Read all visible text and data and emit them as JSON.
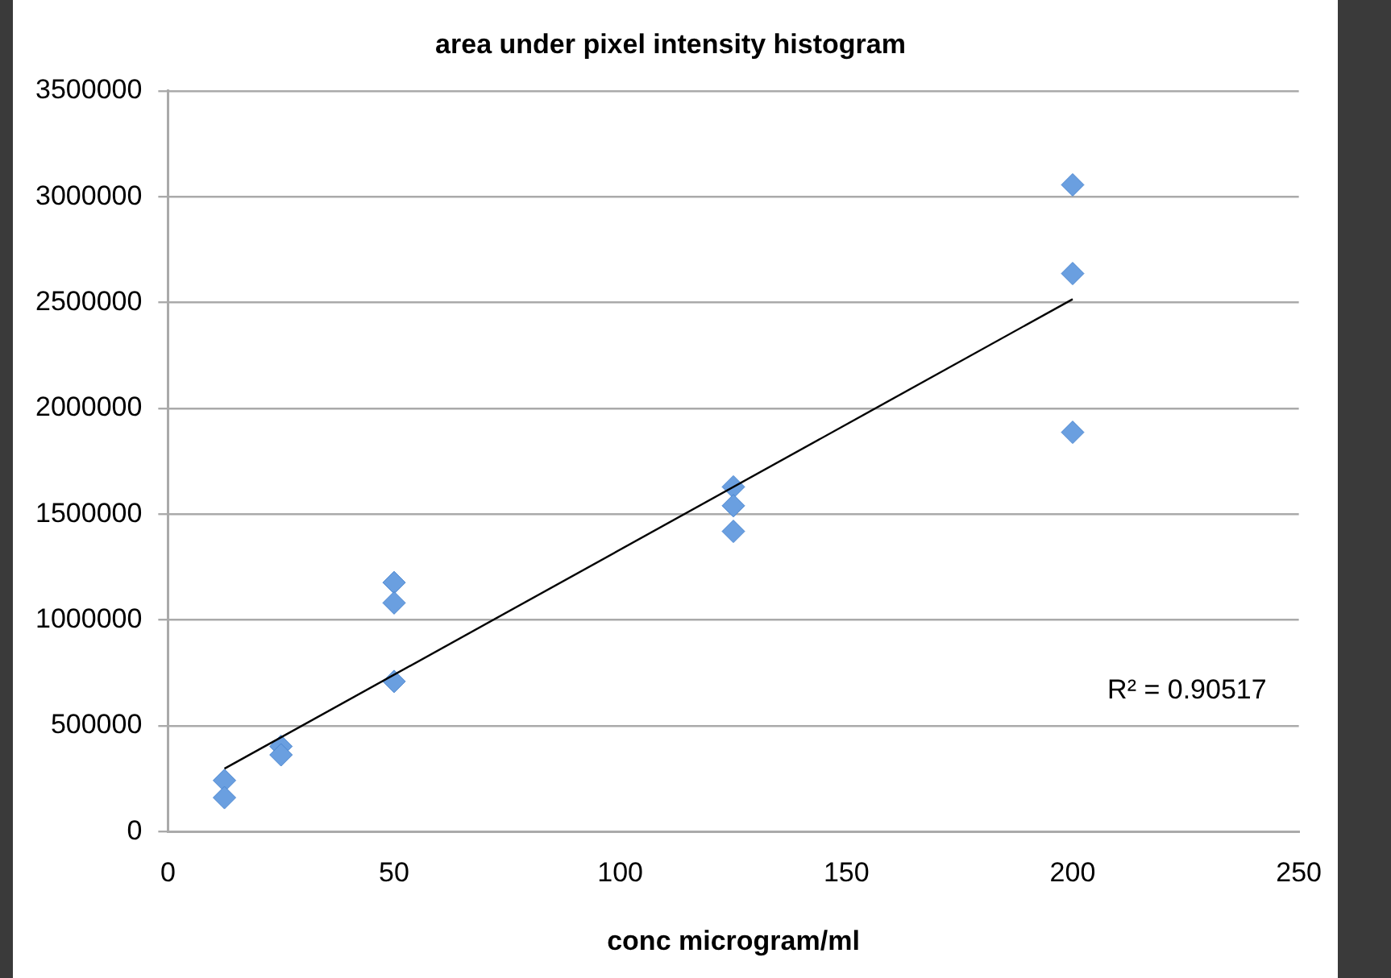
{
  "chart_data": {
    "type": "scatter",
    "title": "area under pixel intensity histogram",
    "xlabel": "conc microgram/ml",
    "xlim": [
      0,
      250
    ],
    "xticks": [
      0,
      50,
      100,
      150,
      200,
      250
    ],
    "ylim": [
      0,
      3500000
    ],
    "yticks": [
      0,
      500000,
      1000000,
      1500000,
      2000000,
      2500000,
      3000000,
      3500000
    ],
    "grid": "y",
    "legend": false,
    "marker": "diamond",
    "annotations": [
      "R² = 0.90517"
    ],
    "series": [
      {
        "color": "#6a9fe0",
        "x": [
          12.5,
          12.5,
          25,
          25,
          50,
          50,
          50,
          125,
          125,
          125,
          200,
          200,
          200
        ],
        "values": [
          242000,
          161000,
          403000,
          363000,
          1177000,
          1081000,
          710000,
          1629000,
          1540000,
          1419000,
          3056000,
          2637000,
          1887000
        ]
      },
      {
        "type": "line",
        "color": "#000000",
        "marker": "none",
        "x": [
          12.5,
          200
        ],
        "values": [
          298000,
          2516000
        ]
      }
    ]
  }
}
